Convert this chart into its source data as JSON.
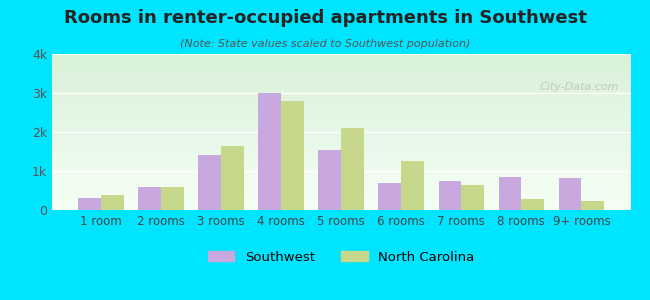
{
  "title": "Rooms in renter-occupied apartments in Southwest",
  "subtitle": "(Note: State values scaled to Southwest population)",
  "categories": [
    "1 room",
    "2 rooms",
    "3 rooms",
    "4 rooms",
    "5 rooms",
    "6 rooms",
    "7 rooms",
    "8 rooms",
    "9+ rooms"
  ],
  "southwest_values": [
    300,
    600,
    1400,
    3000,
    1550,
    700,
    750,
    850,
    820
  ],
  "nc_values": [
    380,
    580,
    1650,
    2800,
    2100,
    1250,
    630,
    280,
    230
  ],
  "southwest_color": "#c9a8e0",
  "nc_color": "#c8d88a",
  "background_outer": "#00e5ff",
  "ylim": [
    0,
    4000
  ],
  "yticks": [
    0,
    1000,
    2000,
    3000,
    4000
  ],
  "ytick_labels": [
    "0",
    "1k",
    "2k",
    "3k",
    "4k"
  ],
  "bar_width": 0.38,
  "legend_southwest": "Southwest",
  "legend_nc": "North Carolina",
  "watermark": "City-Data.com"
}
